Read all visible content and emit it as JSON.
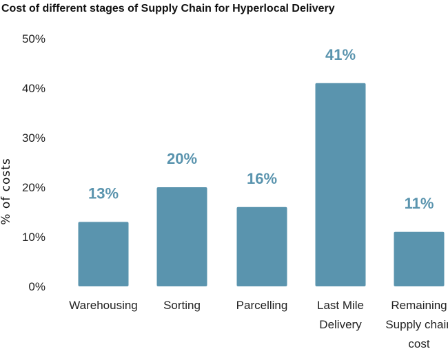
{
  "chart_data": {
    "type": "bar",
    "title": "Cost of different stages of Supply Chain for Hyperlocal Delivery",
    "xlabel": "",
    "ylabel": "% of costs",
    "categories": [
      [
        "Warehousing"
      ],
      [
        "Sorting"
      ],
      [
        "Parcelling"
      ],
      [
        "Last Mile",
        "Delivery"
      ],
      [
        "Remaining",
        "Supply chain",
        "cost"
      ]
    ],
    "values": [
      13,
      20,
      16,
      41,
      11
    ],
    "data_labels": [
      "13%",
      "20%",
      "16%",
      "41%",
      "11%"
    ],
    "ylim": [
      0,
      50
    ],
    "yticks": [
      0,
      10,
      20,
      30,
      40,
      50
    ],
    "ytick_labels": [
      "0%",
      "10%",
      "20%",
      "30%",
      "40%",
      "50%"
    ],
    "grid": false,
    "colors": {
      "bar": "#5a94ae",
      "label": "#5a94ae"
    }
  }
}
